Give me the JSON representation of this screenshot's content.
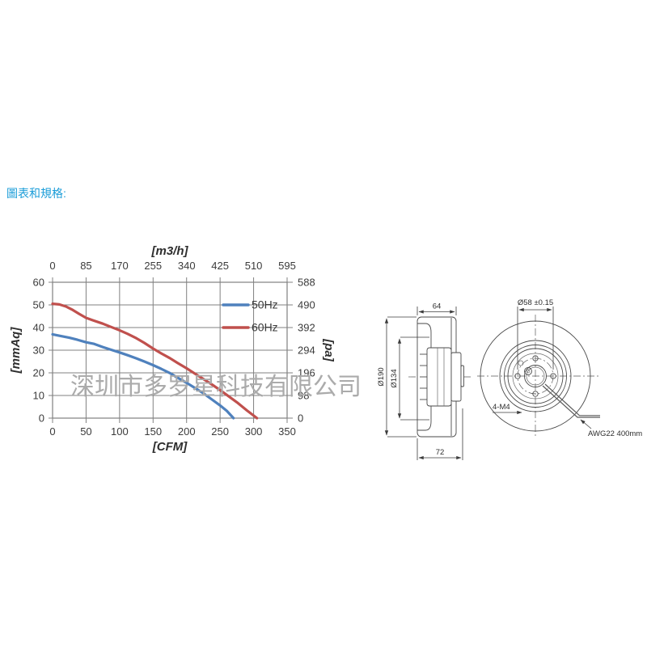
{
  "page": {
    "heading": "圖表和規格:",
    "watermark": "深圳市多罗星科技有限公司"
  },
  "colors": {
    "accent_blue": "#1a9cd8",
    "series_50hz": "#4f81bd",
    "series_60hz": "#c0504d",
    "grid": "#808080",
    "watermark_gray": "#ababab"
  },
  "chart_data": {
    "type": "line",
    "x_bottom": {
      "label": "[CFM]",
      "ticks": [
        0,
        50,
        100,
        150,
        200,
        250,
        300,
        350
      ],
      "range": [
        0,
        350
      ]
    },
    "x_top": {
      "label": "[m3/h]",
      "ticks": [
        0,
        85,
        170,
        255,
        340,
        425,
        510,
        595
      ],
      "range": [
        0,
        595
      ]
    },
    "y_left": {
      "label": "[mmAq]",
      "ticks": [
        60,
        50,
        40,
        30,
        20,
        10,
        0
      ],
      "range": [
        0,
        60
      ]
    },
    "y_right": {
      "label": "[pa]",
      "ticks": [
        588,
        490,
        392,
        294,
        196,
        98,
        0
      ],
      "range": [
        0,
        588
      ]
    },
    "grid": true,
    "legend_position": "inside-right",
    "series": [
      {
        "name": "50Hz",
        "color": "#4f81bd",
        "points": [
          [
            0,
            37
          ],
          [
            12,
            36.3
          ],
          [
            25,
            35.5
          ],
          [
            37,
            34.6
          ],
          [
            50,
            33.5
          ],
          [
            62,
            32.8
          ],
          [
            75,
            31.4
          ],
          [
            87,
            30.2
          ],
          [
            100,
            29
          ],
          [
            112,
            27.8
          ],
          [
            125,
            26.4
          ],
          [
            137,
            25
          ],
          [
            150,
            23.4
          ],
          [
            162,
            21.8
          ],
          [
            175,
            19.9
          ],
          [
            187,
            17.8
          ],
          [
            200,
            15.6
          ],
          [
            212,
            13.4
          ],
          [
            225,
            11
          ],
          [
            237,
            8.4
          ],
          [
            250,
            5.6
          ],
          [
            260,
            3.2
          ],
          [
            270,
            0
          ]
        ]
      },
      {
        "name": "60Hz",
        "color": "#c0504d",
        "points": [
          [
            0,
            50.5
          ],
          [
            10,
            50.2
          ],
          [
            20,
            49.3
          ],
          [
            30,
            47.8
          ],
          [
            40,
            46
          ],
          [
            50,
            44.3
          ],
          [
            60,
            43.2
          ],
          [
            75,
            41.7
          ],
          [
            87,
            40.3
          ],
          [
            100,
            38.8
          ],
          [
            112,
            37.2
          ],
          [
            125,
            35.3
          ],
          [
            137,
            33.2
          ],
          [
            150,
            30.7
          ],
          [
            162,
            28.6
          ],
          [
            175,
            26.5
          ],
          [
            187,
            24.3
          ],
          [
            200,
            22
          ],
          [
            212,
            19.7
          ],
          [
            225,
            17.3
          ],
          [
            237,
            15
          ],
          [
            250,
            12.4
          ],
          [
            262,
            9.8
          ],
          [
            275,
            7
          ],
          [
            290,
            3.4
          ],
          [
            305,
            0
          ]
        ]
      }
    ]
  },
  "drawing": {
    "side_view": {
      "width_top": "64",
      "width_bottom": "72",
      "outer_diameter": "Ø190",
      "inlet_diameter": "Ø134"
    },
    "front_view": {
      "bolt_circle": "Ø58 ±0.15",
      "mounting_holes": "4-M4",
      "lead_wire": "AWG22 400mm"
    }
  }
}
